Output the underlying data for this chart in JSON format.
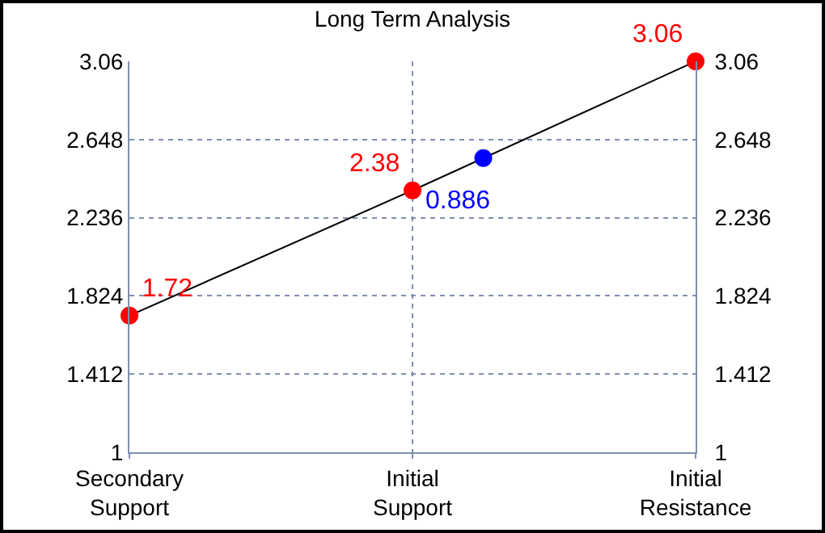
{
  "chart_data": {
    "type": "line",
    "title": "Long Term Analysis",
    "categories": [
      "Secondary Support",
      null,
      null,
      null,
      "Initial Support",
      null,
      null,
      null,
      "Initial Resistance"
    ],
    "ylim": [
      1,
      3.06
    ],
    "yticks": [
      1,
      1.412,
      1.824,
      2.236,
      2.648,
      3.06
    ],
    "y2lim": [
      1,
      3.06
    ],
    "y2ticks": [
      1,
      1.412,
      1.824,
      2.236,
      2.648,
      3.06
    ],
    "grid": true,
    "marker": "circle",
    "annotations": [
      "0.886"
    ],
    "series": [
      {
        "type": "line",
        "color": "#000000",
        "marker": "none",
        "values": [
          1.72,
          null,
          null,
          null,
          2.38,
          null,
          null,
          null,
          3.06
        ]
      },
      {
        "type": "scatter",
        "color": "#ff0000",
        "values": [
          1.72,
          null,
          null,
          null,
          2.38,
          null,
          null,
          null,
          3.06
        ],
        "value_labels": [
          "1.72",
          null,
          null,
          null,
          "2.38",
          null,
          null,
          null,
          "3.06"
        ]
      },
      {
        "type": "scatter",
        "color": "#0000ff",
        "values": [
          null,
          null,
          null,
          null,
          null,
          2.55,
          null,
          null,
          null
        ]
      }
    ]
  }
}
